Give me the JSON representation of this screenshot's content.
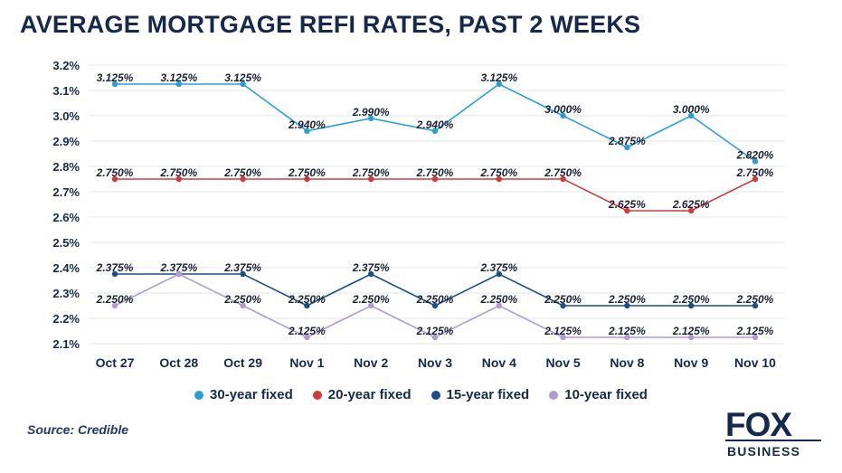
{
  "title": "AVERAGE MORTGAGE REFI RATES, PAST 2 WEEKS",
  "source": "Source: Credible",
  "logo": {
    "top": "FOX",
    "bottom": "BUSINESS"
  },
  "chart_data": {
    "type": "line",
    "categories": [
      "Oct 27",
      "Oct 28",
      "Oct 29",
      "Nov 1",
      "Nov 2",
      "Nov 3",
      "Nov 4",
      "Nov 5",
      "Nov 8",
      "Nov 9",
      "Nov 10"
    ],
    "ylim": [
      2.1,
      3.2
    ],
    "yticks": [
      "2.1%",
      "2.2%",
      "2.3%",
      "2.4%",
      "2.5%",
      "2.6%",
      "2.7%",
      "2.8%",
      "2.9%",
      "3.0%",
      "3.1%",
      "3.2%"
    ],
    "ytick_values": [
      2.1,
      2.2,
      2.3,
      2.4,
      2.5,
      2.6,
      2.7,
      2.8,
      2.9,
      3.0,
      3.1,
      3.2
    ],
    "grid": "horizontal",
    "legend_placement": "bottom",
    "series": [
      {
        "name": "30-year fixed",
        "color": "#2a9fd6",
        "values": [
          3.125,
          3.125,
          3.125,
          2.94,
          2.99,
          2.94,
          3.125,
          3.0,
          2.875,
          3.0,
          2.82
        ],
        "labels": [
          "3.125%",
          "3.125%",
          "3.125%",
          "2.940%",
          "2.990%",
          "2.940%",
          "3.125%",
          "3.000%",
          "2.875%",
          "3.000%",
          "2.820%"
        ]
      },
      {
        "name": "20-year fixed",
        "color": "#d23b3b",
        "values": [
          2.75,
          2.75,
          2.75,
          2.75,
          2.75,
          2.75,
          2.75,
          2.75,
          2.625,
          2.625,
          2.75
        ],
        "labels": [
          "2.750%",
          "2.750%",
          "2.750%",
          "2.750%",
          "2.750%",
          "2.750%",
          "2.750%",
          "2.750%",
          "2.625%",
          "2.625%",
          "2.750%"
        ]
      },
      {
        "name": "15-year fixed",
        "color": "#1b4f8a",
        "values": [
          2.375,
          2.375,
          2.375,
          2.25,
          2.375,
          2.25,
          2.375,
          2.25,
          2.25,
          2.25,
          2.25
        ],
        "labels": [
          "2.375%",
          "2.375%",
          "2.375%",
          "2.250%",
          "2.375%",
          "2.250%",
          "2.375%",
          "2.250%",
          "2.250%",
          "2.250%",
          "2.250%"
        ]
      },
      {
        "name": "10-year fixed",
        "color": "#b39ccd",
        "values": [
          2.25,
          2.375,
          2.25,
          2.125,
          2.25,
          2.125,
          2.25,
          2.125,
          2.125,
          2.125,
          2.125
        ],
        "labels": [
          "2.250%",
          "",
          "2.250%",
          "2.125%",
          "2.250%",
          "2.125%",
          "2.250%",
          "2.125%",
          "2.125%",
          "2.125%",
          "2.125%"
        ]
      }
    ]
  }
}
